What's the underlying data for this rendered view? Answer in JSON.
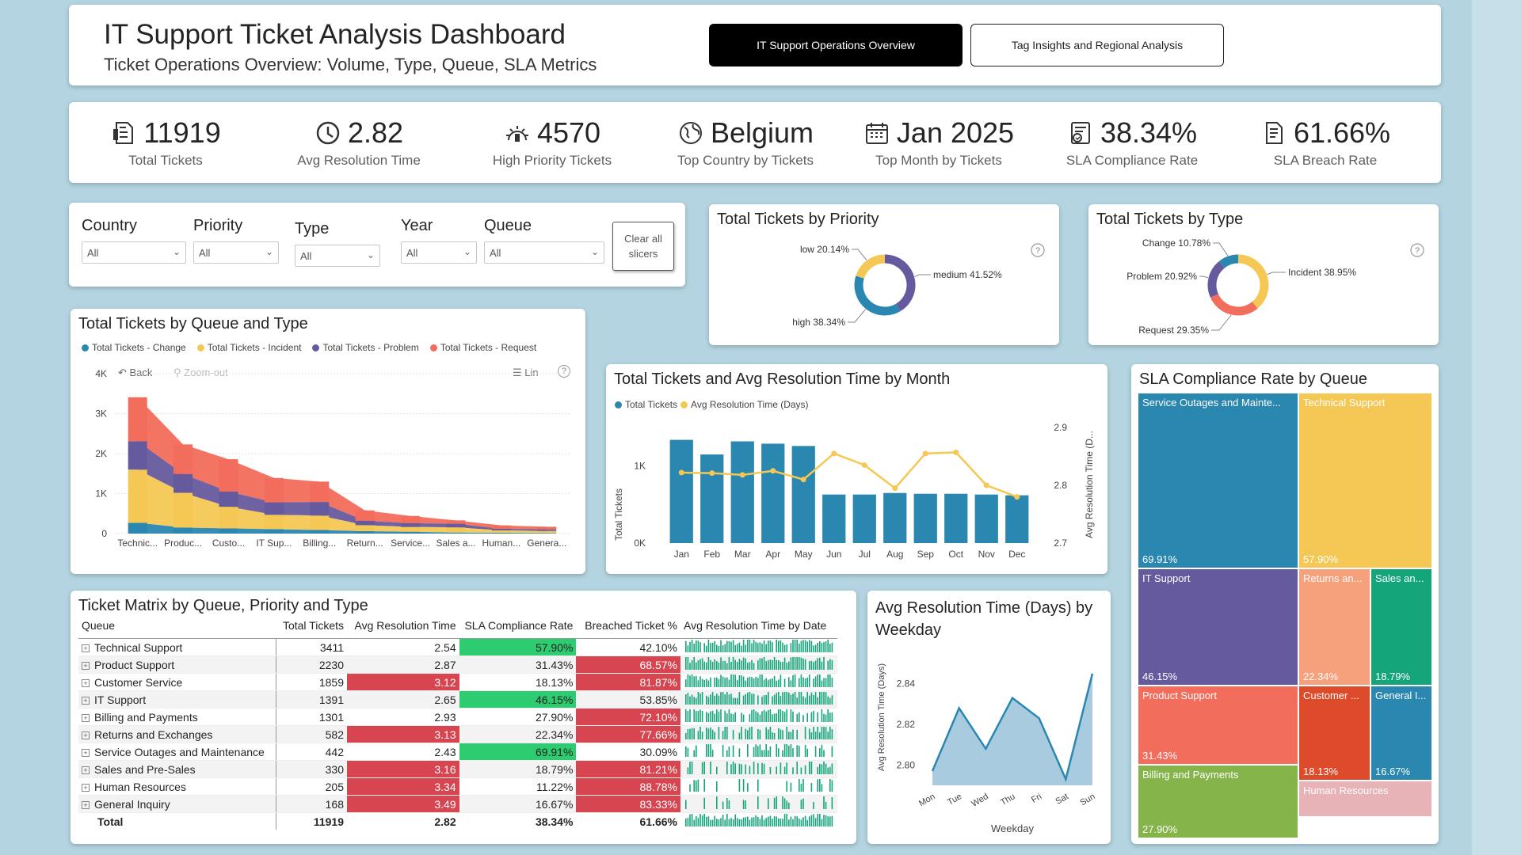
{
  "header": {
    "title": "IT Support Ticket Analysis Dashboard",
    "subtitle": "Ticket Operations Overview: Volume, Type, Queue, SLA Metrics",
    "nav": {
      "active": "IT Support Operations Overview",
      "inactive": "Tag Insights and Regional Analysis"
    }
  },
  "kpis": {
    "total_tickets": {
      "value": "11919",
      "label": "Total Tickets",
      "icon": "ticket-icon"
    },
    "avg_resolution": {
      "value": "2.82",
      "label": "Avg Resolution Time",
      "icon": "clock-icon"
    },
    "high_priority": {
      "value": "4570",
      "label": "High Priority Tickets",
      "icon": "alert-icon"
    },
    "top_country": {
      "value": "Belgium",
      "label": "Top Country by Tickets",
      "icon": "globe-icon"
    },
    "top_month": {
      "value": "Jan 2025",
      "label": "Top Month by Tickets",
      "icon": "calendar-icon"
    },
    "sla_compliance": {
      "value": "38.34%",
      "label": "SLA Compliance Rate",
      "icon": "sla-icon"
    },
    "sla_breach": {
      "value": "61.66%",
      "label": "SLA Breach Rate",
      "icon": "document-icon"
    }
  },
  "slicers": {
    "country": {
      "label": "Country",
      "value": "All"
    },
    "priority": {
      "label": "Priority",
      "value": "All"
    },
    "type": {
      "label": "Type",
      "value": "All"
    },
    "year": {
      "label": "Year",
      "value": "All"
    },
    "queue": {
      "label": "Queue",
      "value": "All"
    },
    "clear_line1": "Clear all",
    "clear_line2": "slicers"
  },
  "colors": {
    "change": "#2a87b0",
    "incident": "#f5c855",
    "problem": "#665a9e",
    "request": "#f26d5b",
    "good": "#2ecc71",
    "bad": "#d64550"
  },
  "queue_type_chart": {
    "toolbar": {
      "back": "Back",
      "zoom": "Zoom-out",
      "lin": "Lin"
    }
  },
  "priority_chart": {
    "help": "?"
  },
  "type_chart": {
    "help": "?"
  },
  "chart_data": [
    {
      "id": "queue_type",
      "type": "area",
      "title": "Total Tickets by Queue and Type",
      "categories": [
        "Technic...",
        "Produc...",
        "Custo...",
        "IT Sup...",
        "Billing...",
        "Return...",
        "Service...",
        "Sales a...",
        "Human...",
        "Genera..."
      ],
      "series": [
        {
          "name": "Total Tickets - Change",
          "values": [
            270,
            150,
            130,
            110,
            90,
            60,
            45,
            25,
            20,
            15
          ]
        },
        {
          "name": "Total Tickets - Incident",
          "values": [
            1330,
            870,
            540,
            360,
            360,
            150,
            120,
            130,
            60,
            50
          ]
        },
        {
          "name": "Total Tickets - Problem",
          "values": [
            710,
            470,
            380,
            310,
            340,
            110,
            95,
            90,
            40,
            40
          ]
        },
        {
          "name": "Total Tickets - Request",
          "values": [
            1100,
            740,
            810,
            610,
            510,
            260,
            180,
            85,
            85,
            65
          ]
        }
      ],
      "yticks": [
        "0",
        "1K",
        "2K",
        "3K",
        "4K"
      ],
      "ylim": [
        0,
        4000
      ]
    },
    {
      "id": "priority",
      "type": "pie",
      "title": "Total Tickets by Priority",
      "labels": [
        "medium 41.52%",
        "high 38.34%",
        "low 20.14%"
      ],
      "values": [
        41.52,
        38.34,
        20.14
      ],
      "colors": [
        "#665a9e",
        "#2a87b0",
        "#f5c855"
      ]
    },
    {
      "id": "type",
      "type": "pie",
      "title": "Total Tickets by Type",
      "labels": [
        "Incident 38.95%",
        "Request 29.35%",
        "Problem 20.92%",
        "Change 10.78%"
      ],
      "values": [
        38.95,
        29.35,
        20.92,
        10.78
      ],
      "colors": [
        "#f5c855",
        "#f26d5b",
        "#665a9e",
        "#2a87b0"
      ]
    },
    {
      "id": "month",
      "type": "bar",
      "title": "Total Tickets and Avg Resolution Time by Month",
      "categories": [
        "Jan",
        "Feb",
        "Mar",
        "Apr",
        "May",
        "Jun",
        "Jul",
        "Aug",
        "Sep",
        "Oct",
        "Nov",
        "Dec"
      ],
      "series": [
        {
          "name": "Total Tickets",
          "values": [
            1340,
            1150,
            1320,
            1290,
            1260,
            630,
            630,
            650,
            640,
            640,
            630,
            620
          ]
        },
        {
          "name": "Avg Resolution Time (Days)",
          "values": [
            2.822,
            2.821,
            2.818,
            2.825,
            2.81,
            2.855,
            2.835,
            2.795,
            2.855,
            2.857,
            2.8,
            2.78
          ]
        }
      ],
      "ylabel": "Total Tickets",
      "y2label": "Avg Resolution Time (D...",
      "yticks": [
        "0K",
        "1K"
      ],
      "y2ticks": [
        "2.7",
        "2.8",
        "2.9"
      ],
      "ylim": [
        0,
        1500
      ],
      "y2lim": [
        2.7,
        2.9
      ]
    },
    {
      "id": "weekday",
      "type": "area",
      "title": "Avg Resolution Time (Days) by Weekday",
      "categories": [
        "Mon",
        "Tue",
        "Wed",
        "Thu",
        "Fri",
        "Sat",
        "Sun"
      ],
      "values": [
        2.797,
        2.828,
        2.808,
        2.833,
        2.823,
        2.793,
        2.845
      ],
      "xlabel": "Weekday",
      "ylabel": "Avg Resolution Time (Days)",
      "yticks": [
        "2.80",
        "2.82",
        "2.84"
      ],
      "ylim": [
        2.79,
        2.85
      ]
    },
    {
      "id": "sla_queue",
      "type": "treemap",
      "title": "SLA Compliance Rate by Queue",
      "items": [
        {
          "name": "Service Outages and Mainte...",
          "value": "69.91%",
          "color": "#2a87b0"
        },
        {
          "name": "Technical Support",
          "value": "57.90%",
          "color": "#f5c855"
        },
        {
          "name": "IT Support",
          "value": "46.15%",
          "color": "#665a9e"
        },
        {
          "name": "Returns an...",
          "value": "22.34%",
          "color": "#f7a07c"
        },
        {
          "name": "Sales an...",
          "value": "18.79%",
          "color": "#14a57b"
        },
        {
          "name": "Product Support",
          "value": "31.43%",
          "color": "#f26d5b"
        },
        {
          "name": "Customer ...",
          "value": "18.13%",
          "color": "#dd4b2b"
        },
        {
          "name": "General I...",
          "value": "16.67%",
          "color": "#2a87b0"
        },
        {
          "name": "Billing and Payments",
          "value": "27.90%",
          "color": "#85b44a"
        },
        {
          "name": "Human Resources",
          "value": "",
          "color": "#e8b3b7"
        }
      ]
    }
  ],
  "matrix": {
    "title": "Ticket Matrix by Queue, Priority and Type",
    "headers": [
      "Queue",
      "Total Tickets",
      "Avg Resolution Time",
      "SLA Compliance Rate",
      "Breached Ticket %",
      "Avg Resolution Time by Date"
    ],
    "rows": [
      {
        "queue": "Technical Support",
        "total": "3411",
        "avg": "2.54",
        "sla": "57.90%",
        "breach": "42.10%",
        "avg_flag": "",
        "sla_flag": "good",
        "breach_flag": ""
      },
      {
        "queue": "Product Support",
        "total": "2230",
        "avg": "2.87",
        "sla": "31.43%",
        "breach": "68.57%",
        "avg_flag": "",
        "sla_flag": "",
        "breach_flag": "bad"
      },
      {
        "queue": "Customer Service",
        "total": "1859",
        "avg": "3.12",
        "sla": "18.13%",
        "breach": "81.87%",
        "avg_flag": "bad",
        "sla_flag": "",
        "breach_flag": "bad"
      },
      {
        "queue": "IT Support",
        "total": "1391",
        "avg": "2.65",
        "sla": "46.15%",
        "breach": "53.85%",
        "avg_flag": "",
        "sla_flag": "good",
        "breach_flag": ""
      },
      {
        "queue": "Billing and Payments",
        "total": "1301",
        "avg": "2.93",
        "sla": "27.90%",
        "breach": "72.10%",
        "avg_flag": "",
        "sla_flag": "",
        "breach_flag": "bad"
      },
      {
        "queue": "Returns and Exchanges",
        "total": "582",
        "avg": "3.13",
        "sla": "22.34%",
        "breach": "77.66%",
        "avg_flag": "bad",
        "sla_flag": "",
        "breach_flag": "bad"
      },
      {
        "queue": "Service Outages and Maintenance",
        "total": "442",
        "avg": "2.43",
        "sla": "69.91%",
        "breach": "30.09%",
        "avg_flag": "",
        "sla_flag": "good",
        "breach_flag": ""
      },
      {
        "queue": "Sales and Pre-Sales",
        "total": "330",
        "avg": "3.16",
        "sla": "18.79%",
        "breach": "81.21%",
        "avg_flag": "bad",
        "sla_flag": "",
        "breach_flag": "bad"
      },
      {
        "queue": "Human Resources",
        "total": "205",
        "avg": "3.34",
        "sla": "11.22%",
        "breach": "88.78%",
        "avg_flag": "bad",
        "sla_flag": "",
        "breach_flag": "bad"
      },
      {
        "queue": "General Inquiry",
        "total": "168",
        "avg": "3.49",
        "sla": "16.67%",
        "breach": "83.33%",
        "avg_flag": "bad",
        "sla_flag": "",
        "breach_flag": "bad"
      }
    ],
    "total": {
      "queue": "Total",
      "total": "11919",
      "avg": "2.82",
      "sla": "38.34%",
      "breach": "61.66%"
    }
  }
}
